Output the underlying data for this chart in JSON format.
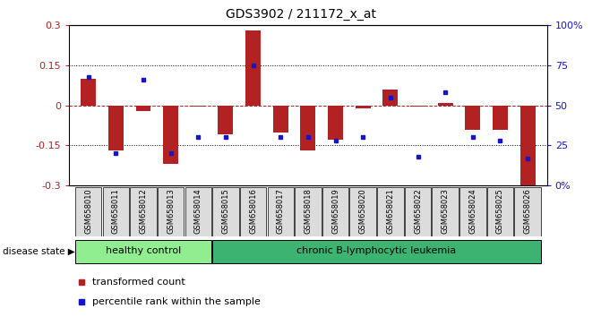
{
  "title": "GDS3902 / 211172_x_at",
  "samples": [
    "GSM658010",
    "GSM658011",
    "GSM658012",
    "GSM658013",
    "GSM658014",
    "GSM658015",
    "GSM658016",
    "GSM658017",
    "GSM658018",
    "GSM658019",
    "GSM658020",
    "GSM658021",
    "GSM658022",
    "GSM658023",
    "GSM658024",
    "GSM658025",
    "GSM658026"
  ],
  "red_values": [
    0.1,
    -0.17,
    -0.02,
    -0.22,
    -0.005,
    -0.11,
    0.28,
    -0.1,
    -0.17,
    -0.13,
    -0.01,
    0.06,
    -0.005,
    0.01,
    -0.09,
    -0.09,
    -0.3
  ],
  "blue_pct": [
    68,
    20,
    66,
    20,
    30,
    30,
    75,
    30,
    30,
    28,
    30,
    55,
    18,
    58,
    30,
    28,
    17
  ],
  "healthy_count": 5,
  "group1_label": "healthy control",
  "group2_label": "chronic B-lymphocytic leukemia",
  "disease_state_label": "disease state",
  "legend_red": "transformed count",
  "legend_blue": "percentile rank within the sample",
  "ylim_min": -0.3,
  "ylim_max": 0.3,
  "yticks": [
    -0.3,
    -0.15,
    0.0,
    0.15,
    0.3
  ],
  "ytick_labels": [
    "-0.3",
    "-0.15",
    "0",
    "0.15",
    "0.3"
  ],
  "right_ytick_pcts": [
    0,
    25,
    50,
    75,
    100
  ],
  "right_ytick_labels": [
    "0%",
    "25",
    "50",
    "75",
    "100%"
  ],
  "dotted_lines": [
    -0.15,
    0.15
  ],
  "zero_line": 0.0,
  "bar_color": "#B22222",
  "blue_color": "#1414CC",
  "bg_color": "#DCDCDC",
  "group1_color": "#90EE90",
  "group2_color": "#3CB371",
  "bar_width": 0.55,
  "fig_width": 6.71,
  "fig_height": 3.54,
  "dpi": 100
}
